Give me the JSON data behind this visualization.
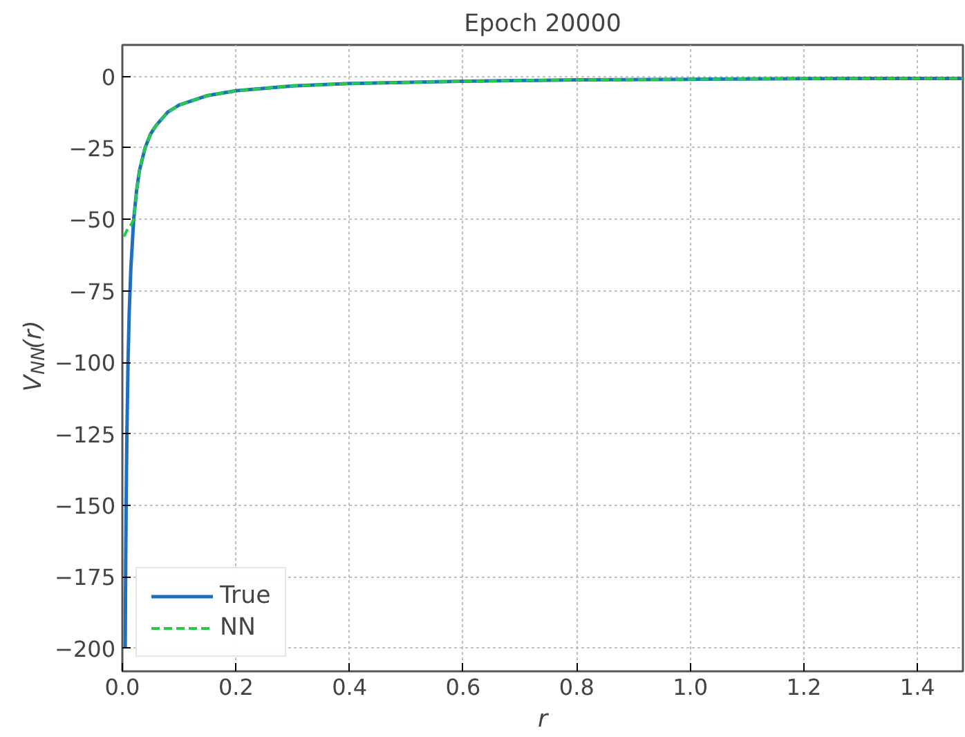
{
  "chart_data": {
    "type": "line",
    "title": "Epoch 20000",
    "xlabel": "r",
    "ylabel": "V$_{NN}$(r)",
    "xlim": [
      0,
      1.48
    ],
    "ylim": [
      -208,
      11
    ],
    "xticks": [
      {
        "value": 0,
        "label": "0.0"
      },
      {
        "value": 0.2,
        "label": "0.2"
      },
      {
        "value": 0.4,
        "label": "0.4"
      },
      {
        "value": 0.6,
        "label": "0.6"
      },
      {
        "value": 0.8,
        "label": "0.8"
      },
      {
        "value": 1.0,
        "label": "1.0"
      },
      {
        "value": 1.2,
        "label": "1.2"
      },
      {
        "value": 1.4,
        "label": "1.4"
      }
    ],
    "yticks": [
      0,
      -25,
      -50,
      -75,
      -100,
      -125,
      -150,
      -175,
      -200
    ],
    "grid": true,
    "legend": "bottom left",
    "series": [
      {
        "name": "True",
        "color": "#1f6fc0",
        "line_style": "solid",
        "x": [
          0.005,
          0.006,
          0.007,
          0.008,
          0.01,
          0.012,
          0.015,
          0.02,
          0.025,
          0.03,
          0.04,
          0.05,
          0.06,
          0.08,
          0.1,
          0.15,
          0.2,
          0.3,
          0.4,
          0.6,
          0.8,
          1.0,
          1.2,
          1.48
        ],
        "values": [
          -200,
          -167,
          -143,
          -125,
          -100,
          -83,
          -67,
          -50,
          -40,
          -33,
          -25,
          -20,
          -17,
          -12.5,
          -10,
          -6.7,
          -5,
          -3.3,
          -2.5,
          -1.7,
          -1.2,
          -1,
          -0.8,
          -0.7
        ]
      },
      {
        "name": "NN",
        "color": "#22cc44",
        "line_style": "dashed",
        "x": [
          0.003,
          0.01,
          0.015,
          0.02,
          0.025,
          0.03,
          0.04,
          0.05,
          0.06,
          0.08,
          0.1,
          0.15,
          0.2,
          0.3,
          0.4,
          0.6,
          0.8,
          1.0,
          1.2,
          1.48
        ],
        "values": [
          -56,
          -53,
          -52,
          -50,
          -40,
          -33,
          -25,
          -20,
          -17,
          -12.5,
          -10,
          -6.7,
          -5,
          -3.3,
          -2.5,
          -1.7,
          -1.2,
          -1,
          -0.8,
          -0.7
        ]
      }
    ]
  }
}
